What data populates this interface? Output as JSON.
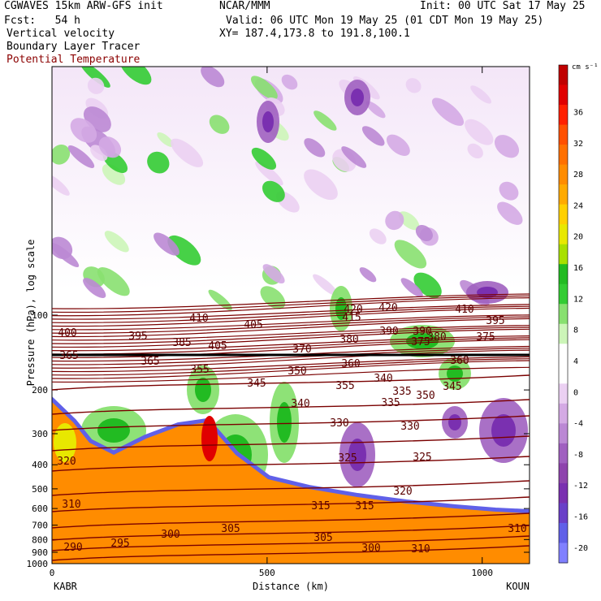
{
  "header": {
    "model": "CGWAVES 15km ARW-GFS init",
    "org": "NCAR/MMM",
    "init": "Init: 00 UTC Sat 17 May 25",
    "fcst": "Fcst:   54 h",
    "valid": "Valid: 06 UTC Mon 19 May 25 (01 CDT Mon 19 May 25)",
    "field1": "Vertical velocity",
    "field2": "Boundary Layer Tracer",
    "field3": "Potential Temperature",
    "xy": "XY= 187.4,173.8 to 191.8,100.1",
    "field3_color": "#8b0000"
  },
  "chart_data": {
    "type": "heatmap",
    "title": "Vertical velocity",
    "ylabel": "Pressure (hPa), log scale",
    "xlabel": "Distance (km)",
    "x_ticks": [
      "0",
      "500",
      "1000"
    ],
    "x_endpoints": {
      "left": "KABR",
      "right": "KOUN"
    },
    "y_ticks": [
      "100",
      "200",
      "300",
      "400",
      "500",
      "600",
      "700",
      "800",
      "900",
      "1000"
    ],
    "xlim": [
      0,
      1110
    ],
    "ylim": [
      1000,
      10
    ],
    "y_scale": "log",
    "colorbar": {
      "unit": "cm s⁻¹",
      "range": [
        -22,
        42
      ],
      "labels": [
        "36",
        "32",
        "28",
        "24",
        "20",
        "16",
        "12",
        "8",
        "4",
        "0",
        "-4",
        "-8",
        "-12",
        "-16",
        "-20"
      ],
      "colors": [
        "#8080ff",
        "#6060e8",
        "#6a40c8",
        "#7a30b0",
        "#8e44ad",
        "#a060c0",
        "#bb88d4",
        "#d4aae4",
        "#ebd0f2",
        "#ffffff",
        "#ffffff",
        "#ccf5b8",
        "#88e070",
        "#33cc33",
        "#22bb22",
        "#a8e000",
        "#e8e800",
        "#ffd000",
        "#ffaa00",
        "#ff8c00",
        "#ff7000",
        "#ff5000",
        "#ff2000",
        "#e00000",
        "#c00000"
      ]
    },
    "theta_labels": [
      "410",
      "420",
      "415",
      "420",
      "405",
      "410",
      "395",
      "400",
      "395",
      "390",
      "385",
      "405",
      "380",
      "390",
      "375",
      "380",
      "375",
      "365",
      "355",
      "370",
      "360",
      "365",
      "360",
      "345",
      "350",
      "355",
      "340",
      "345",
      "350",
      "335",
      "340",
      "335",
      "330",
      "330",
      "325",
      "325",
      "320",
      "320",
      "315",
      "315",
      "310",
      "310",
      "305",
      "300",
      "305",
      "300",
      "310",
      "295",
      "290"
    ]
  }
}
